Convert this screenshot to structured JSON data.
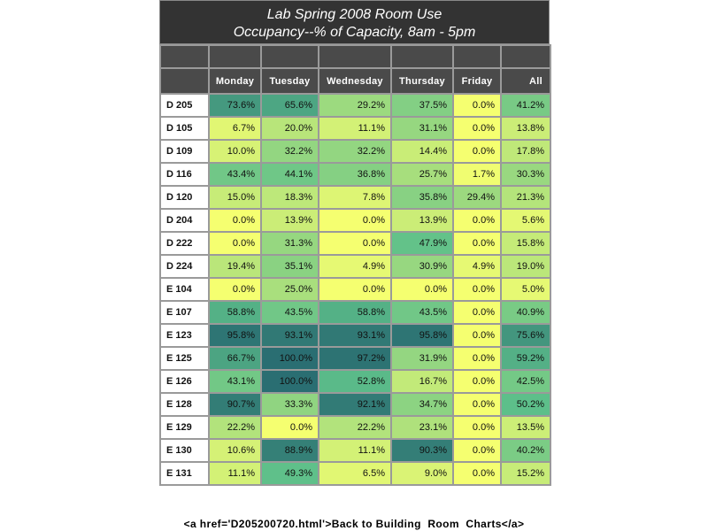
{
  "chart_data": {
    "type": "heatmap",
    "title_line1": "Lab Spring 2008 Room Use",
    "title_line2": "Occupancy--% of Capacity, 8am - 5pm",
    "columns": [
      "Monday",
      "Tuesday",
      "Wednesday",
      "Thursday",
      "Friday",
      "All"
    ],
    "rows": [
      {
        "room": "D 205",
        "values": [
          "73.6%",
          "65.6%",
          "29.2%",
          "37.5%",
          "0.0%",
          "41.2%"
        ]
      },
      {
        "room": "D 105",
        "values": [
          "6.7%",
          "20.0%",
          "11.1%",
          "31.1%",
          "0.0%",
          "13.8%"
        ]
      },
      {
        "room": "D 109",
        "values": [
          "10.0%",
          "32.2%",
          "32.2%",
          "14.4%",
          "0.0%",
          "17.8%"
        ]
      },
      {
        "room": "D 116",
        "values": [
          "43.4%",
          "44.1%",
          "36.8%",
          "25.7%",
          "1.7%",
          "30.3%"
        ]
      },
      {
        "room": "D 120",
        "values": [
          "15.0%",
          "18.3%",
          "7.8%",
          "35.8%",
          "29.4%",
          "21.3%"
        ]
      },
      {
        "room": "D 204",
        "values": [
          "0.0%",
          "13.9%",
          "0.0%",
          "13.9%",
          "0.0%",
          "5.6%"
        ]
      },
      {
        "room": "D 222",
        "values": [
          "0.0%",
          "31.3%",
          "0.0%",
          "47.9%",
          "0.0%",
          "15.8%"
        ]
      },
      {
        "room": "D 224",
        "values": [
          "19.4%",
          "35.1%",
          "4.9%",
          "30.9%",
          "4.9%",
          "19.0%"
        ]
      },
      {
        "room": "E 104",
        "values": [
          "0.0%",
          "25.0%",
          "0.0%",
          "0.0%",
          "0.0%",
          "5.0%"
        ]
      },
      {
        "room": "E 107",
        "values": [
          "58.8%",
          "43.5%",
          "58.8%",
          "43.5%",
          "0.0%",
          "40.9%"
        ]
      },
      {
        "room": "E 123",
        "values": [
          "95.8%",
          "93.1%",
          "93.1%",
          "95.8%",
          "0.0%",
          "75.6%"
        ]
      },
      {
        "room": "E 125",
        "values": [
          "66.7%",
          "100.0%",
          "97.2%",
          "31.9%",
          "0.0%",
          "59.2%"
        ]
      },
      {
        "room": "E 126",
        "values": [
          "43.1%",
          "100.0%",
          "52.8%",
          "16.7%",
          "0.0%",
          "42.5%"
        ]
      },
      {
        "room": "E 128",
        "values": [
          "90.7%",
          "33.3%",
          "92.1%",
          "34.7%",
          "0.0%",
          "50.2%"
        ]
      },
      {
        "room": "E 129",
        "values": [
          "22.2%",
          "0.0%",
          "22.2%",
          "23.1%",
          "0.0%",
          "13.5%"
        ]
      },
      {
        "room": "E 130",
        "values": [
          "10.6%",
          "88.9%",
          "11.1%",
          "90.3%",
          "0.0%",
          "40.2%"
        ]
      },
      {
        "room": "E 131",
        "values": [
          "11.1%",
          "49.3%",
          "6.5%",
          "9.0%",
          "0.0%",
          "15.2%"
        ]
      }
    ],
    "color_scale": {
      "low": "#f5ff70",
      "mid": "#5dbf8a",
      "high": "#2a6e72"
    }
  },
  "footer": {
    "link_text": "<a href='D205200720.html'>Back to Building  Room  Charts</a>"
  }
}
